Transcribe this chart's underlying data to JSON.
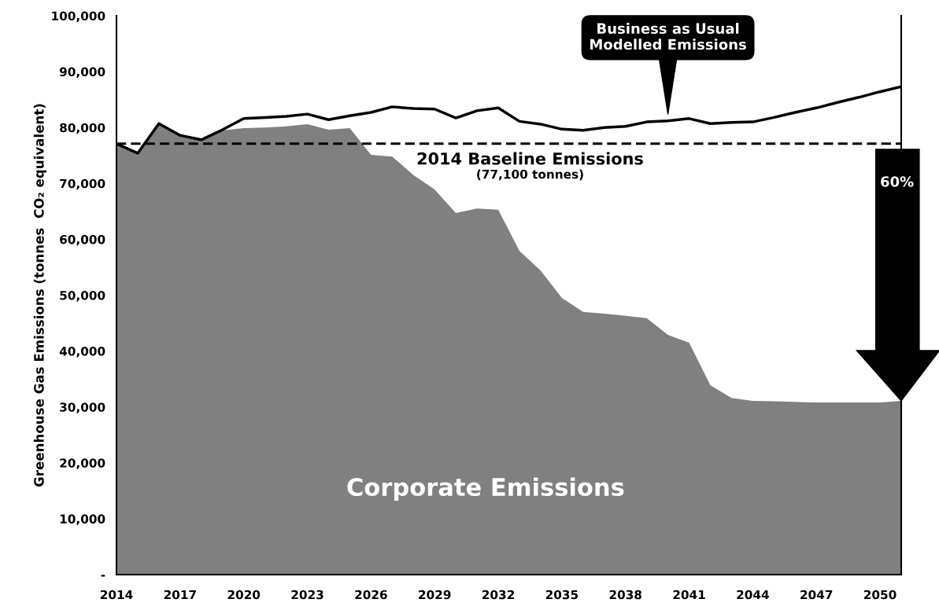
{
  "chart_data": {
    "type": "area",
    "ylabel": "Greenhouse Gas Emissions (tonnes  CO₂ equivalent)",
    "categories": [
      "2014",
      null,
      null,
      "2017",
      null,
      null,
      "2020",
      null,
      null,
      "2023",
      null,
      null,
      "2026",
      null,
      null,
      "2029",
      null,
      null,
      "2032",
      null,
      null,
      "2035",
      null,
      null,
      "2038",
      null,
      null,
      "2041",
      null,
      null,
      "2044",
      null,
      null,
      "2047",
      null,
      null,
      "2050",
      null
    ],
    "series": [
      {
        "name": "Corporate Emissions",
        "color": "#808080",
        "values": [
          77100,
          75400,
          80700,
          78600,
          77800,
          79500,
          79900,
          80000,
          80200,
          80600,
          79600,
          79900,
          75100,
          74800,
          71500,
          68900,
          64700,
          65500,
          65300,
          57900,
          54400,
          49500,
          47000,
          46700,
          46300,
          45900,
          42900,
          41500,
          33900,
          31600,
          31100,
          31000,
          30900,
          30800,
          30800,
          30800,
          30800,
          31100
        ]
      },
      {
        "name": "Business as Usual\nModelled Emissions",
        "type": "line",
        "color": "#000000",
        "line_style": "solid",
        "values": [
          77100,
          75400,
          80700,
          78600,
          77800,
          79600,
          81600,
          81800,
          82000,
          82400,
          81400,
          82100,
          82700,
          83700,
          83400,
          83300,
          81700,
          83000,
          83500,
          81100,
          80600,
          79700,
          79500,
          80000,
          80200,
          81000,
          81200,
          81600,
          80700,
          80900,
          81000,
          81800,
          82700,
          83500,
          84500,
          85400,
          86400,
          87300
        ]
      }
    ],
    "ylim": [
      0,
      100000
    ],
    "yticks": [
      {
        "value": 0,
        "label": "-"
      },
      {
        "value": 10000,
        "label": "10,000"
      },
      {
        "value": 20000,
        "label": "20,000"
      },
      {
        "value": 30000,
        "label": "30,000"
      },
      {
        "value": 40000,
        "label": "40,000"
      },
      {
        "value": 50000,
        "label": "50,000"
      },
      {
        "value": 60000,
        "label": "60,000"
      },
      {
        "value": 70000,
        "label": "70,000"
      },
      {
        "value": 80000,
        "label": "80,000"
      },
      {
        "value": 90000,
        "label": "90,000"
      },
      {
        "value": 100000,
        "label": "100,000"
      }
    ],
    "ref_lines": [
      {
        "axis": "y",
        "value": 77100,
        "label": "2014 Baseline Emissions\n(77,100 tonnes)",
        "color": "#000000",
        "line_style": "dashed"
      }
    ],
    "annotations": [
      "60%"
    ],
    "grid": false,
    "legend": false
  }
}
